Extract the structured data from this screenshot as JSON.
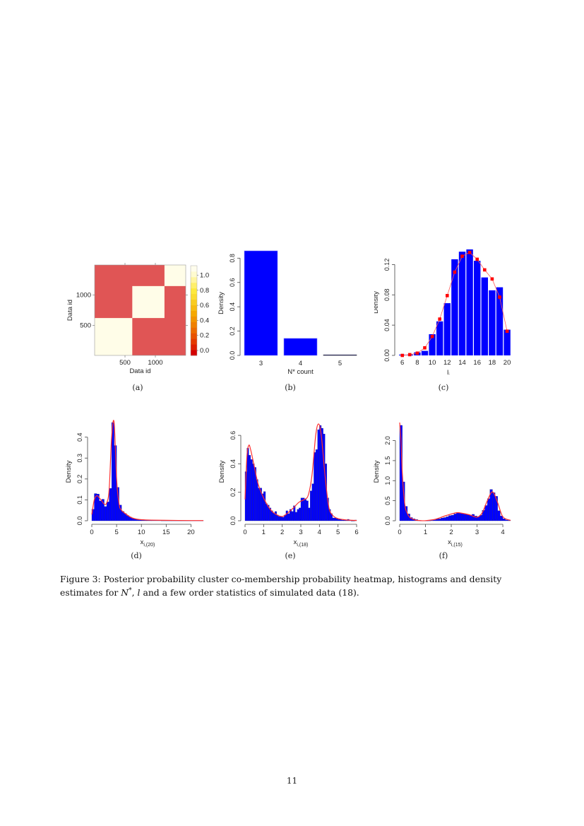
{
  "figure": {
    "number": "Figure 3:",
    "caption_part1": "Posterior probability cluster co-membership probability heatmap, histograms and density estimates for ",
    "caption_N": "N",
    "caption_Nsup": "*",
    "caption_part2": ", ",
    "caption_l": "l",
    "caption_part3": " and a few order statistics of simulated data (18).",
    "panel_labels": [
      "(a)",
      "(b)",
      "(c)",
      "(d)",
      "(e)",
      "(f)"
    ]
  },
  "page_number": "11",
  "colors": {
    "bar": "#0000ff",
    "density": "#ff3030",
    "heat_low": "#e05555",
    "heat_high": "#fffde8"
  },
  "chart_data": [
    {
      "id": "a",
      "type": "heatmap",
      "title": "",
      "xlabel": "Data id",
      "ylabel": "Data id",
      "x_ticks": [
        500,
        1000
      ],
      "y_ticks": [
        500,
        1000
      ],
      "xlim": [
        0,
        1500
      ],
      "ylim": [
        0,
        1500
      ],
      "blocks": [
        {
          "from": 0,
          "to": 620,
          "value": 1.0
        },
        {
          "from": 620,
          "to": 1150,
          "value": 1.0
        },
        {
          "from": 1150,
          "to": 1500,
          "value": 1.0
        }
      ],
      "off_block_value": 0.25,
      "colorbar_ticks": [
        "0.0",
        "0.2",
        "0.4",
        "0.6",
        "0.8",
        "1.0"
      ]
    },
    {
      "id": "b",
      "type": "bar",
      "xlabel": "N* count",
      "ylabel": "Density",
      "categories": [
        "3",
        "4",
        "5"
      ],
      "values": [
        0.86,
        0.14,
        0.002
      ],
      "ylim": [
        0,
        0.86
      ],
      "y_ticks": [
        "0.0",
        "0.2",
        "0.4",
        "0.6",
        "0.8"
      ]
    },
    {
      "id": "c",
      "type": "bar",
      "xlabel": "l_i",
      "ylabel": "Density",
      "categories": [
        6,
        7,
        8,
        9,
        10,
        11,
        12,
        13,
        14,
        15,
        16,
        17,
        18,
        19,
        20
      ],
      "series": [
        {
          "name": "histogram",
          "values": [
            0.001,
            0.001,
            0.004,
            0.006,
            0.028,
            0.045,
            0.069,
            0.127,
            0.137,
            0.14,
            0.125,
            0.103,
            0.086,
            0.09,
            0.034
          ]
        },
        {
          "name": "estimate",
          "values": [
            0.0,
            0.001,
            0.003,
            0.01,
            0.025,
            0.048,
            0.079,
            0.11,
            0.131,
            0.136,
            0.127,
            0.113,
            0.101,
            0.077,
            0.032
          ]
        }
      ],
      "x_ticks": [
        "6",
        "8",
        "10",
        "12",
        "14",
        "16",
        "18",
        "20"
      ],
      "y_ticks": [
        "0.00",
        "0.04",
        "0.08",
        "0.12"
      ],
      "ylim": [
        0,
        0.14
      ]
    },
    {
      "id": "d",
      "type": "bar",
      "xlabel": "x_{i,(20)}",
      "ylabel": "Density",
      "x_ticks": [
        "0",
        "5",
        "10",
        "15",
        "20"
      ],
      "y_ticks": [
        "0.0",
        "0.1",
        "0.2",
        "0.3",
        "0.4"
      ],
      "xlim": [
        0,
        22.5
      ],
      "ylim": [
        0,
        0.47
      ],
      "bin_width": 0.5,
      "bin_starts": [
        0,
        0.5,
        1,
        1.5,
        2,
        2.5,
        3,
        3.5,
        4,
        4.5,
        5,
        5.5,
        6,
        6.5,
        7,
        7.5,
        8,
        8.5,
        9,
        9.5,
        10,
        11,
        12,
        14,
        16,
        18,
        20,
        22
      ],
      "values": [
        0.055,
        0.13,
        0.128,
        0.095,
        0.103,
        0.068,
        0.09,
        0.155,
        0.47,
        0.36,
        0.16,
        0.075,
        0.045,
        0.035,
        0.025,
        0.018,
        0.012,
        0.008,
        0.005,
        0.004,
        0.003,
        0.002,
        0.002,
        0.001,
        0.001,
        0.001,
        0.001,
        0.001
      ],
      "density_x": [
        0,
        0.5,
        1,
        1.5,
        2,
        2.5,
        3,
        3.5,
        4,
        4.5,
        5,
        5.5,
        6,
        7,
        8,
        9,
        10,
        12,
        15,
        20,
        22.5
      ],
      "density_y": [
        0.03,
        0.1,
        0.12,
        0.11,
        0.095,
        0.08,
        0.085,
        0.15,
        0.4,
        0.47,
        0.2,
        0.08,
        0.05,
        0.03,
        0.015,
        0.008,
        0.005,
        0.003,
        0.002,
        0.001,
        0.001
      ]
    },
    {
      "id": "e",
      "type": "bar",
      "xlabel": "x_{i,(18)}",
      "ylabel": "Density",
      "x_ticks": [
        "0",
        "1",
        "2",
        "3",
        "4",
        "5",
        "6"
      ],
      "y_ticks": [
        "0.0",
        "0.2",
        "0.4",
        "0.6"
      ],
      "xlim": [
        0,
        6
      ],
      "ylim": [
        0,
        0.69
      ],
      "bin_width": 0.1,
      "values": [
        0.345,
        0.51,
        0.46,
        0.43,
        0.4,
        0.375,
        0.29,
        0.23,
        0.23,
        0.19,
        0.205,
        0.12,
        0.11,
        0.09,
        0.07,
        0.055,
        0.065,
        0.04,
        0.03,
        0.03,
        0.025,
        0.04,
        0.07,
        0.05,
        0.08,
        0.065,
        0.105,
        0.06,
        0.08,
        0.09,
        0.16,
        0.16,
        0.15,
        0.14,
        0.09,
        0.21,
        0.26,
        0.48,
        0.5,
        0.64,
        0.67,
        0.65,
        0.61,
        0.4,
        0.16,
        0.08,
        0.05,
        0.02,
        0.02,
        0.015,
        0.01,
        0.01,
        0.005,
        0.005,
        0.005,
        0.01,
        0.005,
        0.0,
        0.0,
        0.005
      ],
      "density_x": [
        0,
        0.1,
        0.2,
        0.3,
        0.5,
        0.7,
        1.0,
        1.3,
        1.6,
        2.0,
        2.3,
        2.6,
        2.9,
        3.2,
        3.4,
        3.6,
        3.8,
        3.95,
        4.1,
        4.3,
        4.5,
        4.7,
        5.0,
        5.5,
        6.0
      ],
      "density_y": [
        0.15,
        0.45,
        0.53,
        0.5,
        0.38,
        0.26,
        0.16,
        0.09,
        0.05,
        0.03,
        0.055,
        0.09,
        0.13,
        0.15,
        0.18,
        0.32,
        0.6,
        0.68,
        0.6,
        0.32,
        0.1,
        0.04,
        0.015,
        0.005,
        0.002
      ]
    },
    {
      "id": "f",
      "type": "bar",
      "xlabel": "x_{i,(15)}",
      "ylabel": "Density",
      "x_ticks": [
        "0",
        "1",
        "2",
        "3",
        "4"
      ],
      "y_ticks": [
        "0.0",
        "0.5",
        "1.0",
        "1.5",
        "2.0"
      ],
      "xlim": [
        0,
        4.3
      ],
      "ylim": [
        0,
        2.45
      ],
      "bin_width": 0.1,
      "values": [
        2.38,
        0.97,
        0.36,
        0.17,
        0.08,
        0.05,
        0.03,
        0.01,
        0.005,
        0.003,
        0.003,
        0.005,
        0.01,
        0.02,
        0.04,
        0.05,
        0.07,
        0.08,
        0.1,
        0.13,
        0.14,
        0.17,
        0.2,
        0.19,
        0.18,
        0.17,
        0.15,
        0.14,
        0.16,
        0.12,
        0.1,
        0.14,
        0.26,
        0.38,
        0.55,
        0.78,
        0.7,
        0.61,
        0.25,
        0.12,
        0.05,
        0.02,
        0.01
      ],
      "density_x": [
        0,
        0.05,
        0.1,
        0.2,
        0.3,
        0.4,
        0.6,
        0.8,
        1.0,
        1.4,
        1.8,
        2.2,
        2.4,
        2.7,
        3.0,
        3.2,
        3.4,
        3.6,
        3.8,
        4.0,
        4.3
      ],
      "density_y": [
        2.45,
        2.0,
        1.2,
        0.4,
        0.18,
        0.08,
        0.02,
        0.005,
        0.003,
        0.04,
        0.13,
        0.2,
        0.19,
        0.15,
        0.09,
        0.2,
        0.5,
        0.72,
        0.45,
        0.1,
        0.01
      ]
    }
  ]
}
